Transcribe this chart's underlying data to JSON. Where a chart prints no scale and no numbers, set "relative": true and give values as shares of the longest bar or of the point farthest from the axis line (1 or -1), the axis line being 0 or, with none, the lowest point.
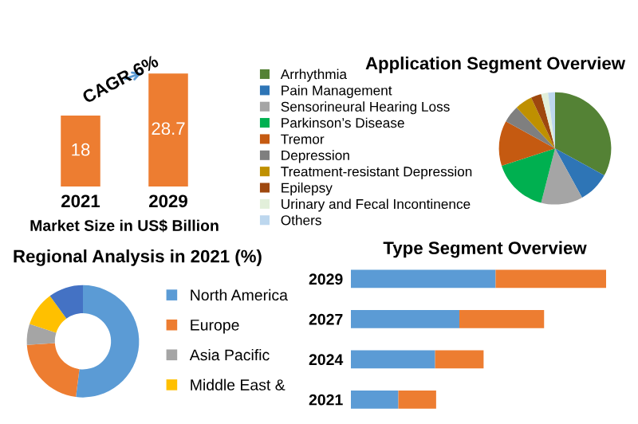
{
  "chart_data": [
    {
      "type": "bar",
      "categories": [
        "2021",
        "2029"
      ],
      "values": [
        18,
        28.7
      ],
      "color": "#ed7d31",
      "data_labels": true,
      "xlabel": "Market Size in US$ Billion",
      "annotations": [
        "CAGR 6%"
      ]
    },
    {
      "type": "pie",
      "title": "Application Segment Overview",
      "categories": [
        "Arrhythmia",
        "Pain Management",
        "Sensorineural Hearing Loss",
        "Parkinson’s Disease",
        "Tremor",
        "Depression",
        "Treatment-resistant Depression",
        "Epilepsy",
        "Urinary and Fecal Incontinence",
        "Others"
      ],
      "values": [
        33,
        9,
        12,
        16,
        13,
        5,
        5,
        3,
        2,
        2
      ],
      "colors": [
        "#548235",
        "#2e75b6",
        "#a5a5a5",
        "#00b050",
        "#c55a11",
        "#7f7f7f",
        "#bf9000",
        "#9e480e",
        "#e2efda",
        "#bdd7ee"
      ],
      "legend": "left"
    },
    {
      "type": "donut",
      "title": "Regional Analysis in 2021 (%)",
      "categories": [
        "North America",
        "Europe",
        "Asia Pacific",
        "Middle East &",
        null
      ],
      "values": [
        52,
        22,
        6,
        10,
        10
      ],
      "colors": [
        "#5b9bd5",
        "#ed7d31",
        "#a5a5a5",
        "#ffc000",
        "#4472c4"
      ],
      "legend": "right"
    },
    {
      "type": "bar",
      "title": "Type Segment Overview",
      "orientation": "horizontal",
      "stacked": true,
      "relative": true,
      "categories": [
        "2029",
        "2027",
        "2024",
        "2021"
      ],
      "series": [
        {
          "color": "#5b9bd5",
          "values": [
            0.567,
            0.425,
            0.33,
            0.186
          ]
        },
        {
          "color": "#ed7d31",
          "values": [
            0.433,
            0.332,
            0.19,
            0.148
          ]
        }
      ]
    }
  ]
}
